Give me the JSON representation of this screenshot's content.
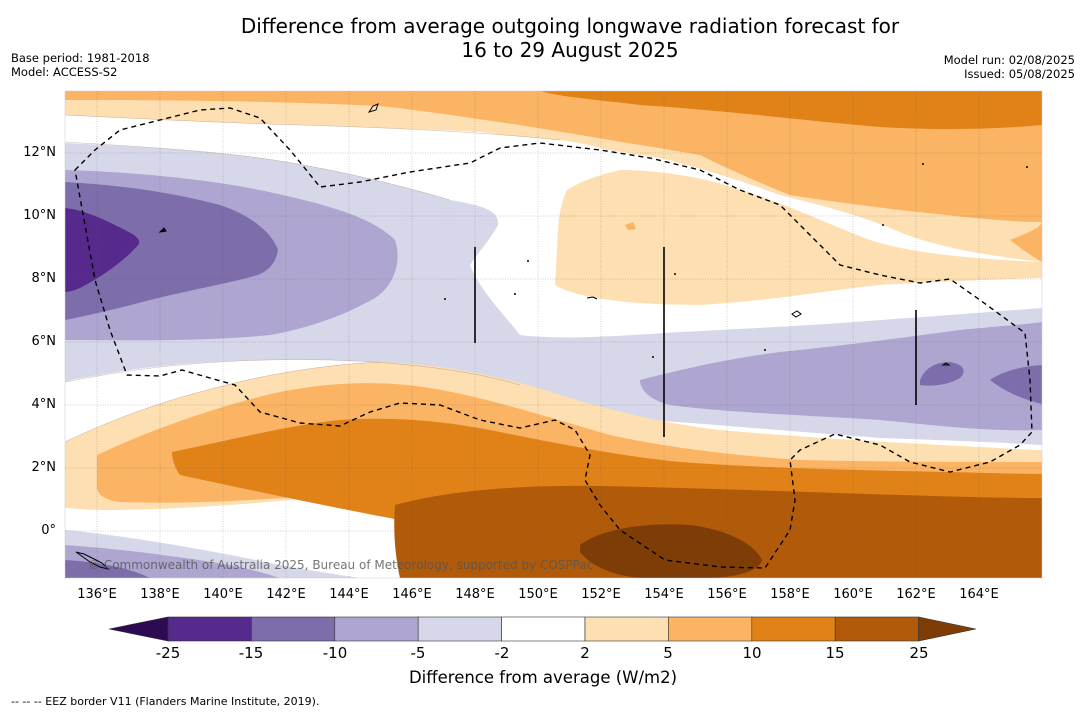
{
  "header": {
    "title_line1": "Difference from average outgoing longwave radiation forecast for",
    "title_line2": "16 to 29 August 2025",
    "base_period": "Base period: 1981-2018",
    "model": "Model: ACCESS-S2",
    "model_run": "Model run: 02/08/2025",
    "issued": "Issued: 05/08/2025"
  },
  "map": {
    "x_ticks": [
      "136°E",
      "138°E",
      "140°E",
      "142°E",
      "144°E",
      "146°E",
      "148°E",
      "150°E",
      "152°E",
      "154°E",
      "156°E",
      "158°E",
      "160°E",
      "162°E",
      "164°E"
    ],
    "y_ticks": [
      "12°N",
      "10°N",
      "8°N",
      "6°N",
      "4°N",
      "2°N",
      "0°"
    ],
    "credit": "© Commonwealth of Australia 2025, Bureau of Meteorology, supported by COSPPac"
  },
  "colorbar": {
    "labels": [
      "-25",
      "-15",
      "-10",
      "-5",
      "-2",
      "2",
      "5",
      "10",
      "15",
      "25"
    ],
    "colors": [
      "#2d0a52",
      "#562a8c",
      "#7d6eab",
      "#aea6d1",
      "#d7d7ea",
      "#ffffff",
      "#fddfb1",
      "#fbb463",
      "#e08218",
      "#b05a0a",
      "#7e3d06"
    ],
    "title": "Difference from average (W/m2)"
  },
  "footnote": "--  --  -- EEZ border V11 (Flanders Marine Institute, 2019)."
}
